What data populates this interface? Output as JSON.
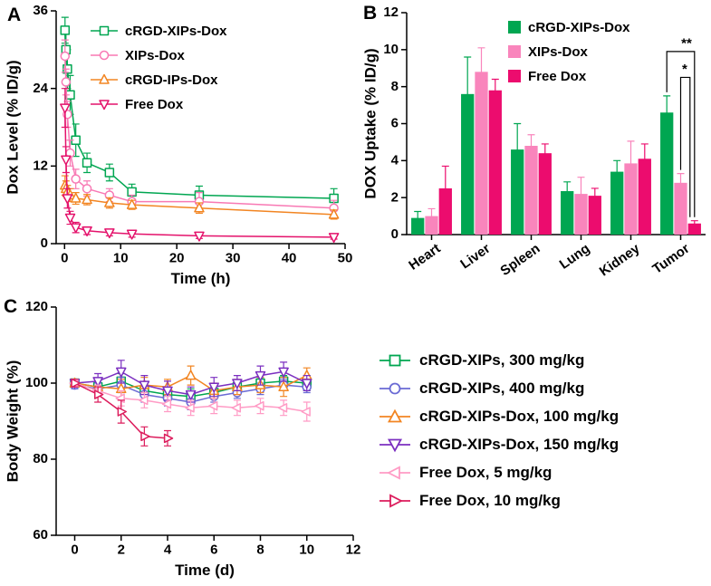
{
  "panels": {
    "a": {
      "label": "A"
    },
    "b": {
      "label": "B"
    },
    "c": {
      "label": "C"
    }
  },
  "chart_data": [
    {
      "type": "line",
      "xlabel": "Time (h)",
      "ylabel": "Dox Level (% ID/g)",
      "xlim": [
        -1.5,
        50
      ],
      "ylim": [
        0,
        36
      ],
      "xticks": [
        0,
        10,
        20,
        30,
        40,
        50
      ],
      "yticks": [
        0,
        12,
        24,
        36
      ],
      "legend_position": "top-left-inset",
      "series": [
        {
          "name": "cRGD-XIPs-Dox",
          "marker": "square",
          "color": "#00A651",
          "x": [
            0.08,
            0.25,
            0.5,
            1,
            2,
            4,
            8,
            12,
            24,
            48
          ],
          "y": [
            33,
            30,
            27,
            23,
            16,
            12.5,
            11,
            8,
            7.5,
            7
          ],
          "yerr": [
            2,
            3,
            3,
            3,
            2.5,
            1.5,
            1.3,
            1.2,
            1.4,
            1.5
          ]
        },
        {
          "name": "XIPs-Dox",
          "marker": "circle",
          "color": "#F879B4",
          "x": [
            0.08,
            0.25,
            0.5,
            1,
            2,
            4,
            8,
            12,
            24,
            48
          ],
          "y": [
            29,
            25,
            20,
            14,
            10,
            8.5,
            7.5,
            6.5,
            6.5,
            5.5
          ],
          "yerr": [
            2.5,
            2,
            2,
            2,
            1.5,
            1.2,
            1,
            1,
            1.4,
            1.2
          ]
        },
        {
          "name": "cRGD-IPs-Dox",
          "marker": "triangle-up",
          "color": "#F28522",
          "x": [
            0.08,
            0.25,
            0.5,
            1,
            2,
            4,
            8,
            12,
            24,
            48
          ],
          "y": [
            9,
            8.5,
            8,
            7.5,
            7,
            6.8,
            6.3,
            6,
            5.5,
            4.5
          ],
          "yerr": [
            1.5,
            1.2,
            1,
            1,
            0.9,
            0.8,
            0.8,
            0.7,
            0.8,
            0.7
          ]
        },
        {
          "name": "Free Dox",
          "marker": "triangle-down",
          "color": "#E4126B",
          "x": [
            0.08,
            0.25,
            0.5,
            1,
            2,
            4,
            8,
            12,
            24,
            48
          ],
          "y": [
            21,
            13,
            7,
            4,
            2.5,
            2,
            1.7,
            1.5,
            1.2,
            1
          ],
          "yerr": [
            3,
            2,
            1.5,
            1,
            0.8,
            0.6,
            0.5,
            0.5,
            0.4,
            0.3
          ]
        }
      ]
    },
    {
      "type": "bar",
      "xlabel": "",
      "ylabel": "DOX Uptake (% ID/g)",
      "ylim": [
        0,
        12
      ],
      "yticks": [
        0,
        2,
        4,
        6,
        8,
        10,
        12
      ],
      "categories": [
        "Heart",
        "Liver",
        "Spleen",
        "Lung",
        "Kidney",
        "Tumor"
      ],
      "legend_position": "top-right-inset",
      "series": [
        {
          "name": "cRGD-XIPs-Dox",
          "color": "#00A651",
          "values": [
            0.9,
            7.6,
            4.6,
            2.35,
            3.4,
            6.6
          ],
          "yerr": [
            0.35,
            2.0,
            1.4,
            0.5,
            0.6,
            0.9
          ]
        },
        {
          "name": "XIPs-Dox",
          "color": "#F985BC",
          "values": [
            1.0,
            8.8,
            4.8,
            2.2,
            3.85,
            2.8
          ],
          "yerr": [
            0.4,
            1.3,
            0.6,
            0.9,
            1.2,
            0.5
          ]
        },
        {
          "name": "Free Dox",
          "color": "#EC0C6E",
          "values": [
            2.5,
            7.8,
            4.4,
            2.1,
            4.1,
            0.6
          ],
          "yerr": [
            1.2,
            0.6,
            0.5,
            0.4,
            0.8,
            0.15
          ]
        }
      ],
      "annotations": [
        {
          "label": "**",
          "category_index": 5,
          "from_series": 0,
          "to_series": 2,
          "y": 9.9
        },
        {
          "label": "*",
          "category_index": 5,
          "from_series": 1,
          "to_series": 2,
          "y": 8.5
        }
      ]
    },
    {
      "type": "line",
      "xlabel": "Time (d)",
      "ylabel": "Body Weight (%)",
      "xlim": [
        -0.8,
        12
      ],
      "ylim": [
        60,
        120
      ],
      "xticks": [
        0,
        2,
        4,
        6,
        8,
        10,
        12
      ],
      "yticks": [
        60,
        80,
        100,
        120
      ],
      "legend_position": "external-right",
      "series": [
        {
          "name": "cRGD-XIPs, 300 mg/kg",
          "marker": "square",
          "color": "#00A651",
          "x": [
            0,
            1,
            2,
            3,
            4,
            5,
            6,
            7,
            8,
            9,
            10
          ],
          "y": [
            100,
            99,
            100.5,
            98,
            97,
            96.5,
            97.5,
            99,
            100,
            100.5,
            100
          ],
          "yerr": [
            1,
            1.5,
            2,
            1.5,
            1.5,
            2,
            1.5,
            1.5,
            1.5,
            1.5,
            2
          ]
        },
        {
          "name": "cRGD-XIPs, 400 mg/kg",
          "marker": "circle",
          "color": "#6A6AD4",
          "x": [
            0,
            1,
            2,
            3,
            4,
            5,
            6,
            7,
            8,
            9,
            10
          ],
          "y": [
            99.5,
            98.5,
            99.5,
            97,
            96,
            95,
            96.5,
            97.5,
            98.5,
            99.5,
            99
          ],
          "yerr": [
            1,
            1.5,
            2,
            2,
            2,
            2,
            1.5,
            1.5,
            1.5,
            1.5,
            1.5
          ]
        },
        {
          "name": "cRGD-XIPs-Dox, 100 mg/kg",
          "marker": "triangle-up",
          "color": "#F28522",
          "x": [
            0,
            1,
            2,
            3,
            4,
            5,
            6,
            7,
            8,
            9,
            10
          ],
          "y": [
            100,
            99,
            98.5,
            99.5,
            99,
            102,
            98,
            99,
            99.5,
            99,
            102
          ],
          "yerr": [
            1,
            2,
            2.5,
            2,
            2,
            2.5,
            2,
            2,
            2,
            2.5,
            2
          ]
        },
        {
          "name": "cRGD-XIPs-Dox, 150 mg/kg",
          "marker": "triangle-down",
          "color": "#7B2FC0",
          "x": [
            0,
            1,
            2,
            3,
            4,
            5,
            6,
            7,
            8,
            9,
            10
          ],
          "y": [
            100,
            100.5,
            103,
            99.5,
            98,
            97,
            99,
            100,
            102,
            103,
            100
          ],
          "yerr": [
            1,
            2,
            3,
            2.5,
            2.5,
            2,
            2.5,
            2,
            2.5,
            2.5,
            2
          ]
        },
        {
          "name": "Free Dox, 5 mg/kg",
          "marker": "triangle-left",
          "color": "#FF9BC5",
          "x": [
            0,
            1,
            2,
            3,
            4,
            5,
            6,
            7,
            8,
            9,
            10
          ],
          "y": [
            100,
            98,
            96,
            95.5,
            94.5,
            93.5,
            94,
            93.5,
            94,
            93.5,
            92.5
          ],
          "yerr": [
            1,
            1.5,
            2,
            2,
            2,
            2,
            2,
            2,
            2,
            2,
            2.5
          ]
        },
        {
          "name": "Free Dox, 10 mg/kg",
          "marker": "triangle-right",
          "color": "#DC1C5C",
          "x": [
            0,
            1,
            2,
            3,
            4
          ],
          "y": [
            100,
            97,
            92.5,
            86,
            85.5
          ],
          "yerr": [
            1,
            2,
            3,
            2.5,
            2
          ]
        }
      ]
    }
  ]
}
